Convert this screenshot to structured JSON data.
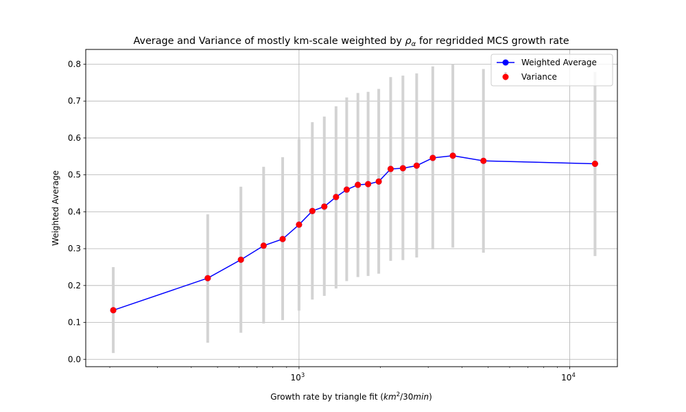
{
  "chart_data": {
    "type": "line",
    "title": "Average and Variance of mostly km-scale weighted by",
    "title_symbol": "ρ",
    "title_subscript": "α",
    "title_suffix": "for regridded MCS growth rate",
    "xlabel_prefix": "Growth rate by triangle fit (",
    "xlabel_math": "km",
    "xlabel_sup": "2",
    "xlabel_math2": "/30",
    "xlabel_math3": "min",
    "xlabel_suffix": ")",
    "ylabel": "Weighted Average",
    "xscale": "log",
    "xlim": [
      163,
      15000
    ],
    "ylim": [
      -0.02,
      0.84
    ],
    "grid": true,
    "legend_position": "top-right",
    "x_tick_labels": [
      {
        "value": 1000,
        "base": "10",
        "exp": "3"
      },
      {
        "value": 10000,
        "base": "10",
        "exp": "4"
      }
    ],
    "y_ticks": [
      0.0,
      0.1,
      0.2,
      0.3,
      0.4,
      0.5,
      0.6,
      0.7,
      0.8
    ],
    "y_tick_labels": [
      "0.0",
      "0.1",
      "0.2",
      "0.3",
      "0.4",
      "0.5",
      "0.6",
      "0.7",
      "0.8"
    ],
    "series": [
      {
        "name": "Weighted Average",
        "color": "#0000ff",
        "marker_color": "#0000ff",
        "x": [
          206,
          460,
          610,
          740,
          870,
          1000,
          1120,
          1240,
          1370,
          1500,
          1650,
          1800,
          1970,
          2180,
          2420,
          2720,
          3120,
          3700,
          4800,
          12400
        ],
        "y": [
          0.133,
          0.22,
          0.27,
          0.308,
          0.326,
          0.365,
          0.402,
          0.414,
          0.44,
          0.46,
          0.473,
          0.475,
          0.482,
          0.516,
          0.518,
          0.525,
          0.546,
          0.552,
          0.538,
          0.53
        ]
      },
      {
        "name": "Variance",
        "marker_color": "#ff0000",
        "bar_color": "#d3d3d3",
        "lower": [
          0.017,
          0.045,
          0.072,
          0.097,
          0.106,
          0.132,
          0.162,
          0.172,
          0.192,
          0.212,
          0.223,
          0.226,
          0.232,
          0.267,
          0.269,
          0.276,
          0.298,
          0.303,
          0.289,
          0.28
        ],
        "upper": [
          0.25,
          0.393,
          0.468,
          0.522,
          0.548,
          0.597,
          0.643,
          0.658,
          0.686,
          0.71,
          0.722,
          0.725,
          0.733,
          0.765,
          0.769,
          0.775,
          0.794,
          0.8,
          0.787,
          0.779
        ]
      }
    ]
  }
}
